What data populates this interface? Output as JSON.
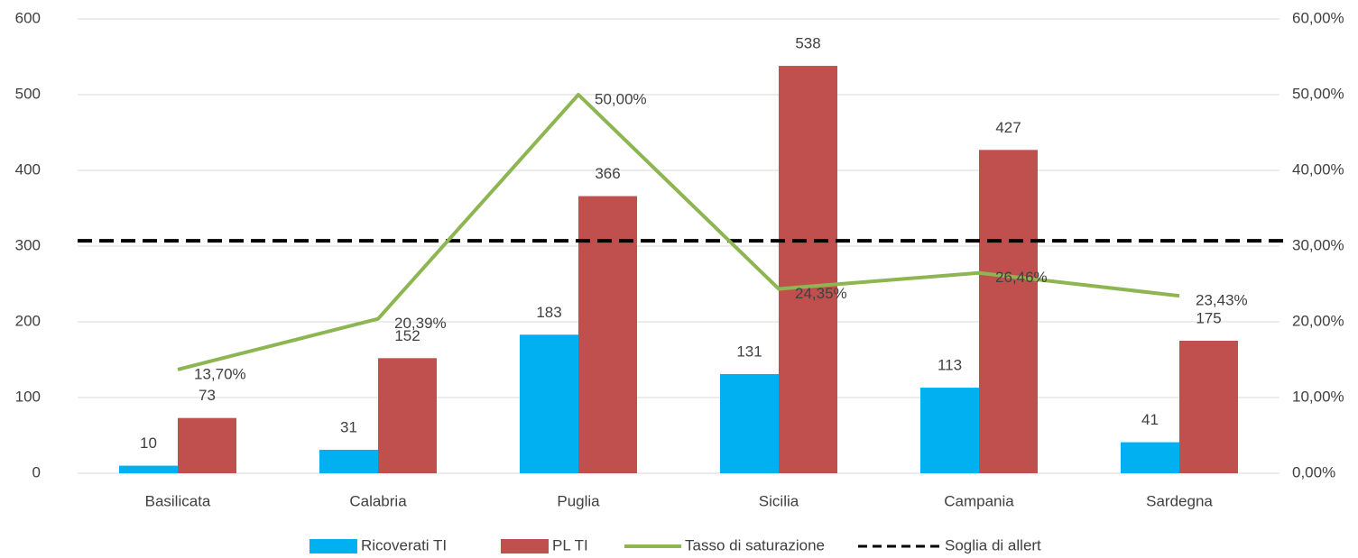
{
  "chart_data": {
    "type": "bar",
    "categories": [
      "Basilicata",
      "Calabria",
      "Puglia",
      "Sicilia",
      "Campania",
      "Sardegna"
    ],
    "series": [
      {
        "name": "Ricoverati TI",
        "type": "bar",
        "color": "#00b0f0",
        "values": [
          10,
          31,
          183,
          131,
          113,
          41
        ]
      },
      {
        "name": "PL TI",
        "type": "bar",
        "color": "#c0504d",
        "values": [
          73,
          152,
          366,
          538,
          427,
          175
        ]
      },
      {
        "name": "Tasso di saturazione",
        "type": "line",
        "axis": "y2",
        "color": "#8db652",
        "values": [
          13.7,
          20.39,
          50.0,
          24.35,
          26.46,
          23.43
        ],
        "value_labels": [
          "13,70%",
          "20,39%",
          "50,00%",
          "24,35%",
          "26,46%",
          "23,43%"
        ]
      }
    ],
    "threshold": {
      "name": "Soglia di allert",
      "value": 30.7,
      "axis": "y2",
      "color": "#000000"
    },
    "ylim": [
      0,
      600
    ],
    "yticks": [
      0,
      100,
      200,
      300,
      400,
      500,
      600
    ],
    "y2lim": [
      0,
      60
    ],
    "y2ticks": [
      {
        "value": 0,
        "label": "0,00%"
      },
      {
        "value": 10,
        "label": "10,00%"
      },
      {
        "value": 20,
        "label": "20,00%"
      },
      {
        "value": 30,
        "label": "30,00%"
      },
      {
        "value": 40,
        "label": "40,00%"
      },
      {
        "value": 50,
        "label": "50,00%"
      },
      {
        "value": 60,
        "label": "60,00%"
      }
    ],
    "grid": true,
    "legend": "bottom"
  }
}
